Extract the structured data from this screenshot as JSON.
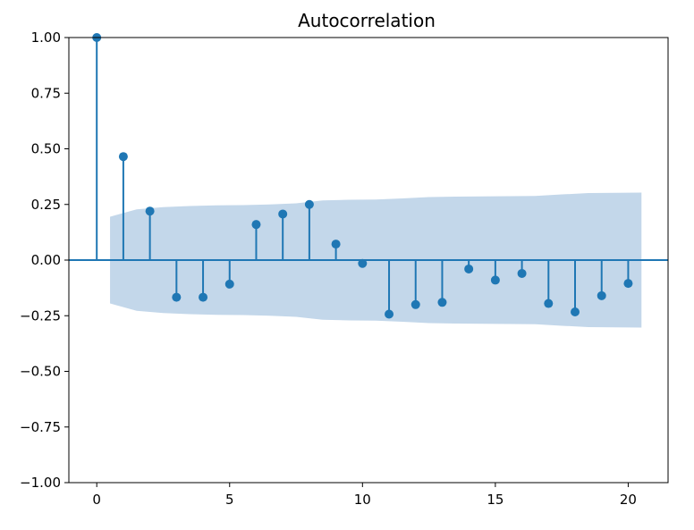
{
  "chart_data": {
    "type": "stem",
    "title": "Autocorrelation",
    "xlabel": "",
    "ylabel": "",
    "xlim": [
      -1.05,
      21.5
    ],
    "ylim": [
      -1.0,
      1.0
    ],
    "x_ticks": [
      0,
      5,
      10,
      15,
      20
    ],
    "x_tick_labels": [
      "0",
      "5",
      "10",
      "15",
      "20"
    ],
    "y_ticks": [
      1.0,
      0.75,
      0.5,
      0.25,
      0.0,
      -0.25,
      -0.5,
      -0.75,
      -1.0
    ],
    "y_tick_labels": [
      "1.00",
      "0.75",
      "0.50",
      "0.25",
      "0.00",
      "−0.25",
      "−0.50",
      "−0.75",
      "−1.00"
    ],
    "grid": false,
    "baseline": 0,
    "series": [
      {
        "x": [
          0,
          1,
          2,
          3,
          4,
          5,
          6,
          7,
          8,
          9,
          10,
          11,
          12,
          13,
          14,
          15,
          16,
          17,
          18,
          19,
          20
        ],
        "values": [
          1.0,
          0.465,
          0.22,
          -0.167,
          -0.167,
          -0.108,
          0.16,
          0.207,
          0.25,
          0.072,
          -0.015,
          -0.243,
          -0.2,
          -0.19,
          -0.04,
          -0.09,
          -0.06,
          -0.195,
          -0.233,
          -0.16,
          -0.105
        ]
      }
    ],
    "confidence_band": {
      "x": [
        0.5,
        1.5,
        2.5,
        3.5,
        4.5,
        5.5,
        6.5,
        7.5,
        8.5,
        9.5,
        10.5,
        11.5,
        12.5,
        13.5,
        14.5,
        15.5,
        16.5,
        17.5,
        18.5,
        19.5,
        20.5
      ],
      "upper": [
        0.195,
        0.228,
        0.238,
        0.243,
        0.246,
        0.247,
        0.25,
        0.255,
        0.268,
        0.271,
        0.272,
        0.277,
        0.283,
        0.285,
        0.286,
        0.287,
        0.288,
        0.295,
        0.301,
        0.302,
        0.303
      ],
      "lower": [
        -0.195,
        -0.228,
        -0.238,
        -0.243,
        -0.246,
        -0.247,
        -0.25,
        -0.255,
        -0.268,
        -0.271,
        -0.272,
        -0.277,
        -0.283,
        -0.285,
        -0.286,
        -0.287,
        -0.288,
        -0.295,
        -0.301,
        -0.302,
        -0.303
      ]
    },
    "colors": {
      "stem": "#1f77b4",
      "band": "#c3d7ea",
      "axis": "#000000"
    }
  }
}
